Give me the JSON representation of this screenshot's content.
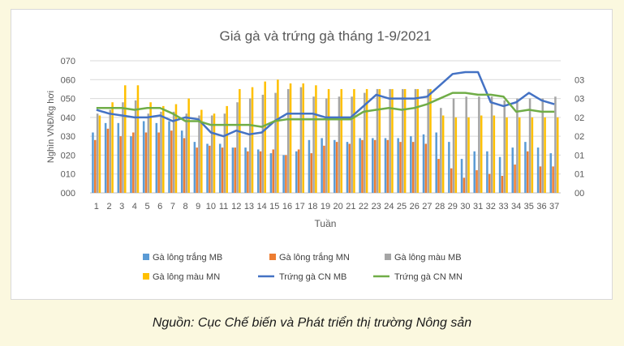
{
  "chart_data": {
    "type": "bar",
    "title": "Giá gà và trứng gà tháng 1-9/2021",
    "xlabel": "Tuần",
    "ylabel": "Nghìn VNĐ/kg hơi",
    "categories": [
      "1",
      "2",
      "3",
      "4",
      "5",
      "6",
      "7",
      "8",
      "9",
      "10",
      "11",
      "12",
      "13",
      "14",
      "15",
      "16",
      "17",
      "18",
      "19",
      "20",
      "21",
      "22",
      "23",
      "24",
      "25",
      "26",
      "27",
      "28",
      "29",
      "30",
      "31",
      "32",
      "33",
      "34",
      "35",
      "36",
      "37"
    ],
    "y_left": {
      "min": 0,
      "max": 70,
      "step": 10,
      "tick_labels": [
        "000",
        "010",
        "020",
        "030",
        "040",
        "050",
        "060",
        "070"
      ]
    },
    "y_right": {
      "min": 0,
      "max": 3.5,
      "tick_labels": [
        "00",
        "01",
        "01",
        "02",
        "02",
        "03",
        "03"
      ]
    },
    "grid": true,
    "legend_position": "bottom",
    "series": [
      {
        "name": "Gà lông trắng  MB",
        "kind": "bar",
        "axis": "left",
        "color": "#5b9bd5",
        "values": [
          32,
          37,
          37,
          30,
          38,
          37,
          38,
          33,
          27,
          26,
          26,
          24,
          24,
          23,
          21,
          20,
          22,
          28,
          29,
          28,
          27,
          29,
          29,
          29,
          29,
          30,
          31,
          32,
          27,
          18,
          22,
          22,
          19,
          24,
          27,
          24,
          21
        ]
      },
      {
        "name": "Gà lông trắng  MN",
        "kind": "bar",
        "axis": "left",
        "color": "#ed7d31",
        "values": [
          28,
          34,
          30,
          32,
          32,
          32,
          33,
          29,
          24,
          25,
          24,
          24,
          22,
          22,
          23,
          20,
          23,
          21,
          25,
          27,
          26,
          28,
          28,
          28,
          27,
          27,
          26,
          18,
          13,
          8,
          12,
          10,
          9,
          15,
          22,
          14,
          14
        ]
      },
      {
        "name": "Gà lông màu MB",
        "kind": "bar",
        "axis": "left",
        "color": "#a5a5a5",
        "values": [
          42,
          44,
          48,
          49,
          42,
          43,
          43,
          42,
          41,
          41,
          42,
          48,
          50,
          52,
          53,
          55,
          56,
          51,
          50,
          51,
          51,
          53,
          55,
          55,
          55,
          55,
          55,
          45,
          50,
          51,
          51,
          51,
          49,
          50,
          50,
          50,
          51
        ]
      },
      {
        "name": "Gà lông màu MN",
        "kind": "bar",
        "axis": "left",
        "color": "#ffc000",
        "values": [
          41,
          48,
          57,
          57,
          48,
          46,
          47,
          50,
          44,
          42,
          46,
          55,
          56,
          59,
          60,
          58,
          58,
          57,
          55,
          55,
          55,
          55,
          55,
          55,
          55,
          55,
          55,
          41,
          40,
          40,
          41,
          41,
          40,
          40,
          40,
          40,
          40
        ]
      },
      {
        "name": "Trứng gà CN MB",
        "kind": "line",
        "axis": "right",
        "color": "#4472c4",
        "values": [
          2.2,
          2.1,
          2.05,
          2.0,
          2.0,
          2.05,
          1.9,
          2.0,
          1.95,
          1.6,
          1.5,
          1.65,
          1.55,
          1.6,
          1.9,
          2.1,
          2.1,
          2.1,
          2.0,
          2.0,
          2.0,
          2.3,
          2.6,
          2.5,
          2.5,
          2.5,
          2.55,
          2.85,
          3.15,
          3.2,
          3.2,
          2.4,
          2.3,
          2.4,
          2.65,
          2.45,
          2.35
        ]
      },
      {
        "name": "Trứng gà CN MN",
        "kind": "line",
        "axis": "right",
        "color": "#70ad47",
        "values": [
          2.25,
          2.25,
          2.25,
          2.2,
          2.25,
          2.25,
          2.1,
          1.9,
          1.9,
          1.8,
          1.8,
          1.8,
          1.8,
          1.75,
          1.9,
          1.95,
          1.95,
          1.95,
          1.95,
          1.95,
          1.95,
          2.15,
          2.2,
          2.25,
          2.2,
          2.25,
          2.35,
          2.5,
          2.65,
          2.65,
          2.6,
          2.6,
          2.55,
          2.15,
          2.2,
          2.15,
          2.15
        ]
      }
    ]
  },
  "source": "Nguồn: Cục Chế biến và Phát triển thị trường Nông sản"
}
